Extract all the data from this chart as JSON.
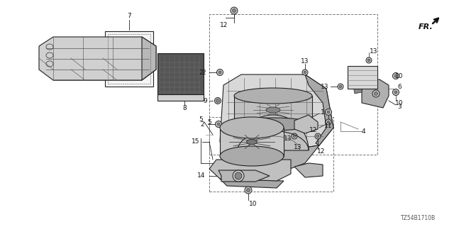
{
  "bg_color": "#ffffff",
  "fig_width": 6.4,
  "fig_height": 3.2,
  "dpi": 100,
  "line_color": "#222222",
  "label_fontsize": 6.5,
  "diagram_id_text": "TZ54B1710B",
  "fr_text": "FR.",
  "gray_fill": "#c8c8c8",
  "dark_fill": "#555555",
  "mid_fill": "#999999",
  "light_fill": "#e8e8e8"
}
